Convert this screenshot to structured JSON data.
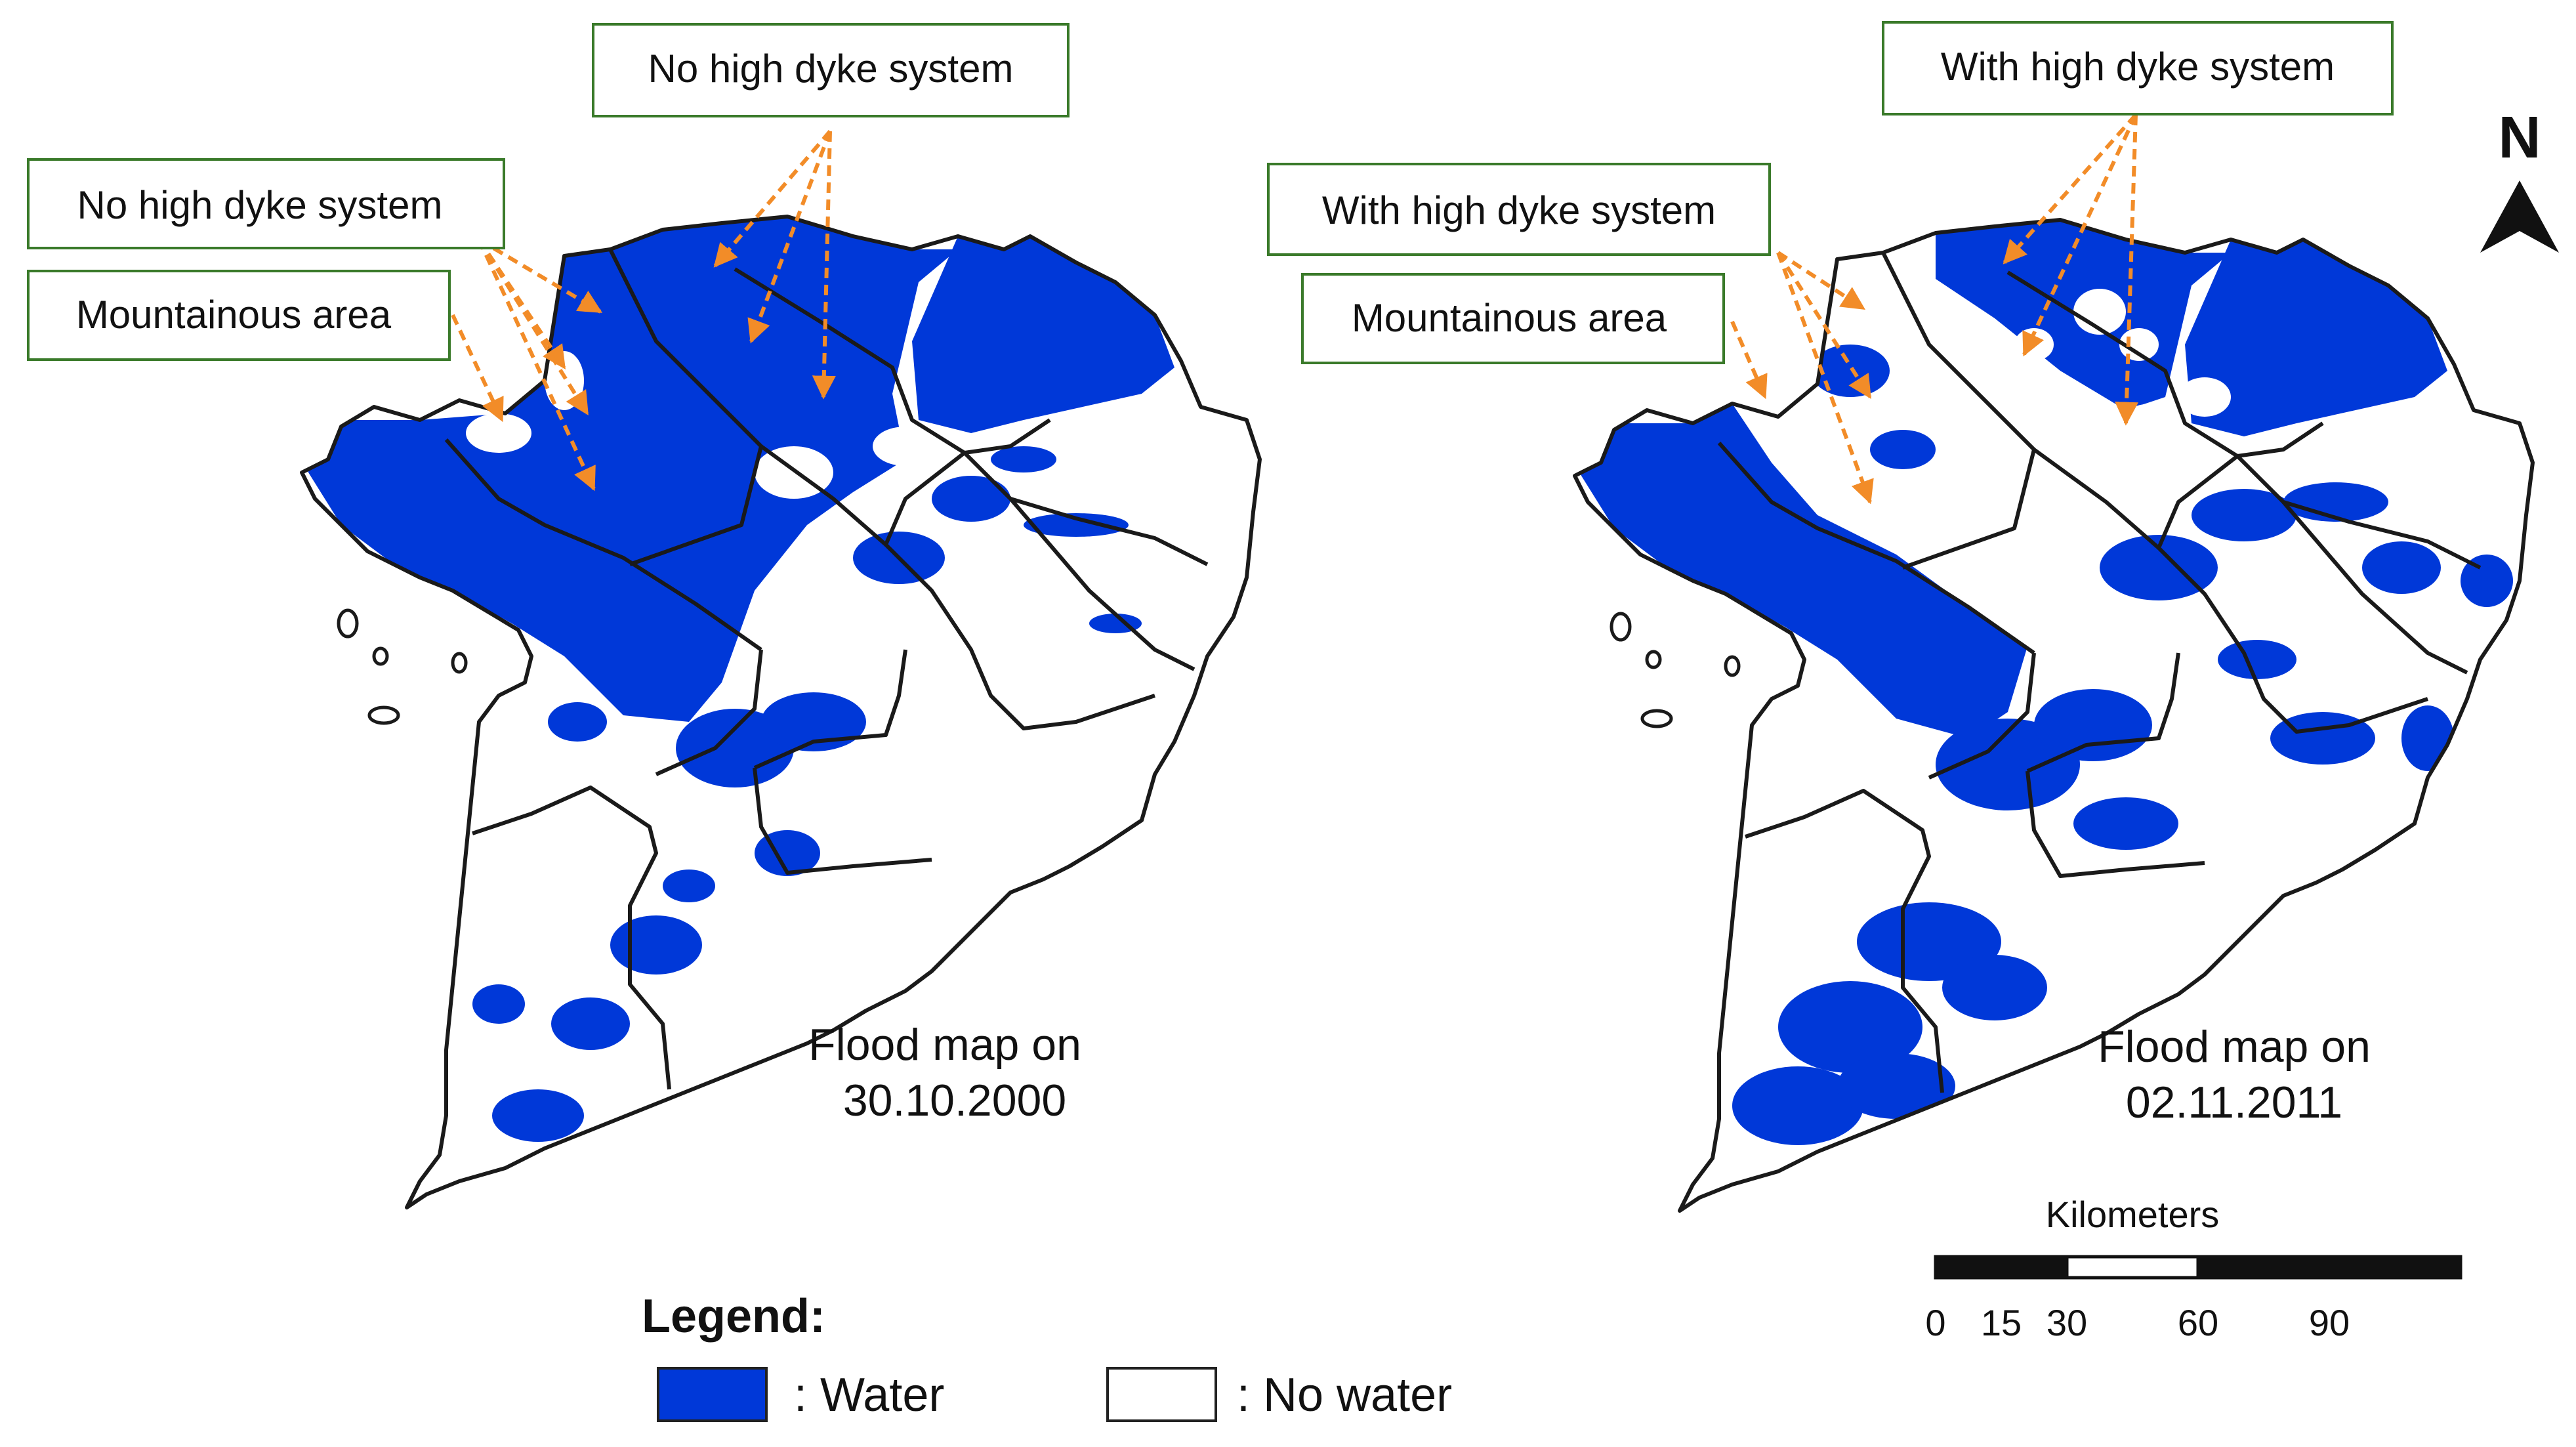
{
  "colors": {
    "water": "#0038d8",
    "no_water": "#ffffff",
    "boundary": "#1a1a1a",
    "callout_border": "#3a7a2a",
    "arrow": "#f28c28"
  },
  "left_map": {
    "caption_line1": "Flood map on",
    "caption_line2": "30.10.2000",
    "callouts": {
      "top": "No high dyke system",
      "left": "No high dyke system",
      "mountain": "Mountainous  area"
    }
  },
  "right_map": {
    "caption_line1": "Flood map on",
    "caption_line2": "02.11.2011",
    "callouts": {
      "top": "With high dyke system",
      "left": "With high dyke system",
      "mountain": "Mountainous  area"
    }
  },
  "north_arrow": {
    "label": "N",
    "icon": "north-arrow-icon"
  },
  "scale_bar": {
    "unit": "Kilometers",
    "ticks": [
      "0",
      "15",
      "30",
      "60",
      "90"
    ]
  },
  "legend": {
    "title": "Legend:",
    "items": [
      {
        "label": ": Water",
        "swatch": "#0038d8"
      },
      {
        "label": ": No water",
        "swatch": "#ffffff"
      }
    ]
  }
}
